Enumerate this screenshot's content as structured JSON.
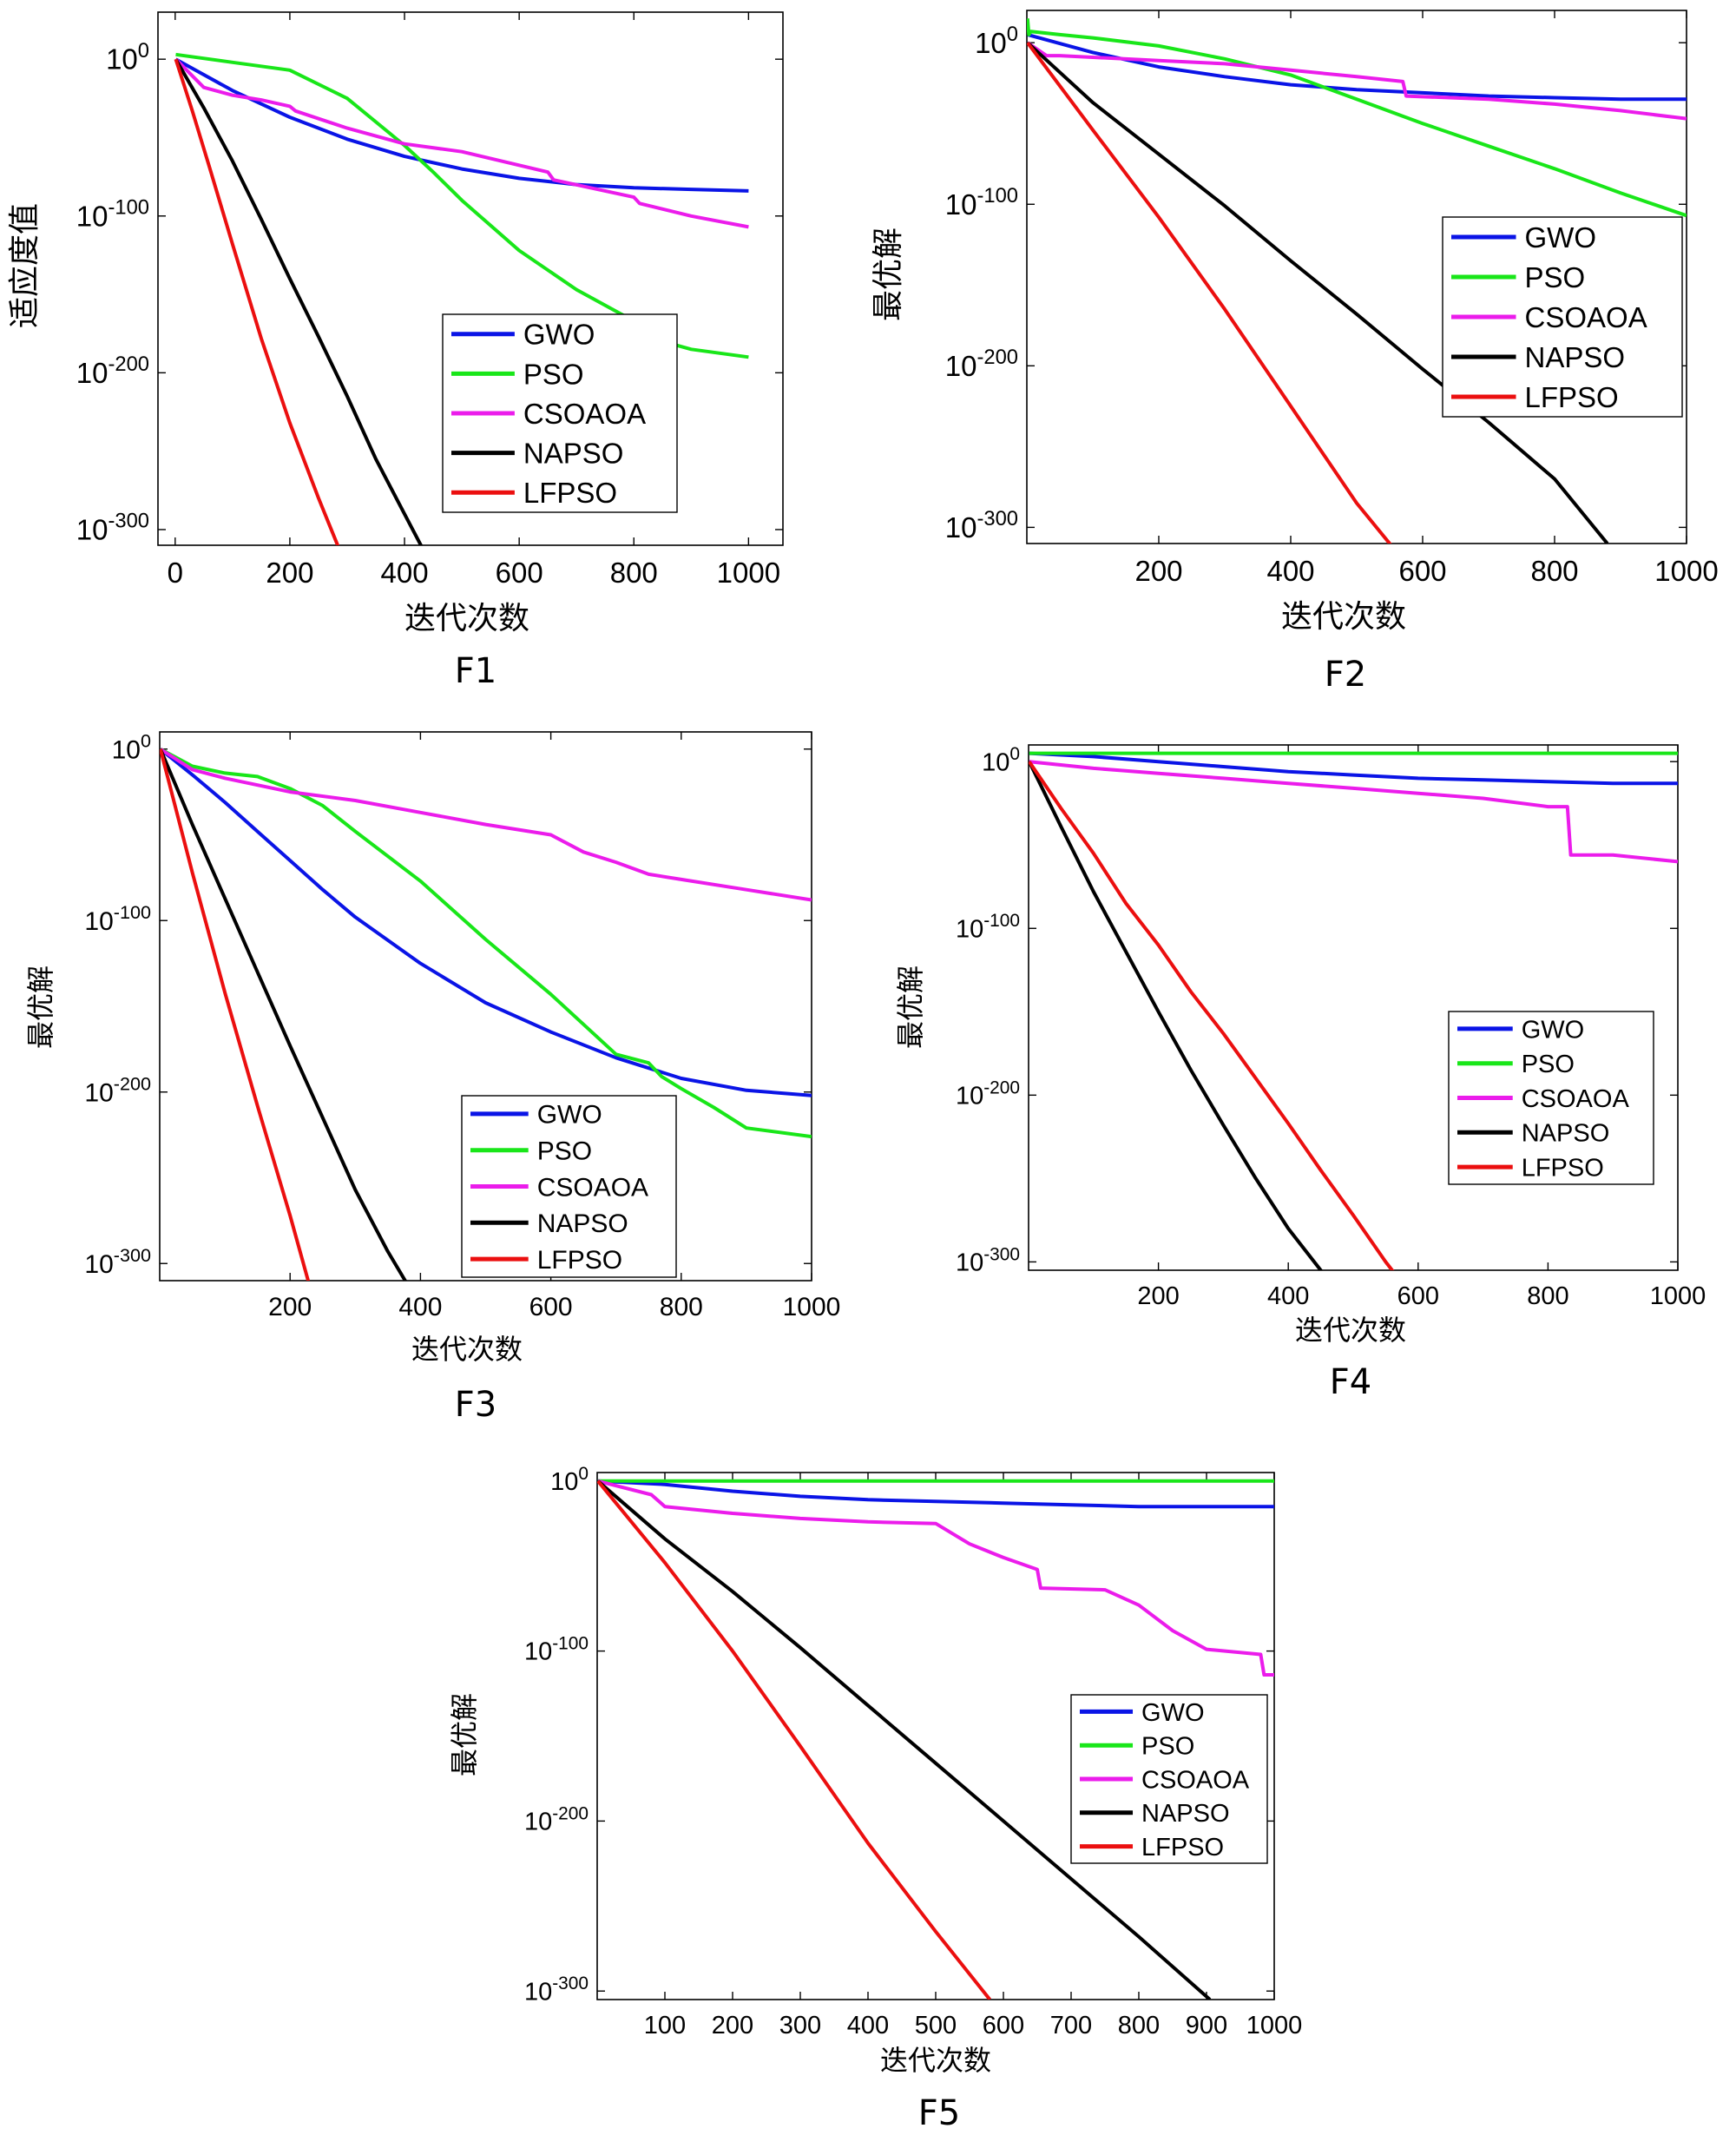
{
  "figure": {
    "series_colors": {
      "GWO": "#0a14e6",
      "PSO": "#19e619",
      "CSOAOA": "#eb1ceb",
      "NAPSO": "#000000",
      "LFPSO": "#eb0f0f"
    }
  },
  "chart_data": [
    {
      "id": "F1",
      "type": "line",
      "caption": "F1",
      "xlabel": "迭代次数",
      "ylabel": "适应度值",
      "yscale": "log10",
      "xlim": [
        -30,
        1060
      ],
      "ylim": [
        -310,
        30
      ],
      "xticks": [
        0,
        200,
        400,
        600,
        800,
        1000
      ],
      "yticks": [
        0,
        -100,
        -200,
        -300
      ],
      "ytick_labels": [
        "10^0",
        "10^-100",
        "10^-200",
        "10^-300"
      ],
      "legend_location": "lower-right",
      "series": [
        {
          "name": "GWO",
          "x": [
            1,
            100,
            200,
            300,
            400,
            500,
            600,
            700,
            800,
            900,
            1000
          ],
          "y": [
            0,
            -20,
            -37,
            -51,
            -62,
            -70,
            -76,
            -80,
            -82,
            -83,
            -84
          ]
        },
        {
          "name": "PSO",
          "x": [
            1,
            100,
            200,
            300,
            400,
            450,
            500,
            600,
            700,
            800,
            840,
            850,
            900,
            1000
          ],
          "y": [
            3,
            -2,
            -7,
            -25,
            -55,
            -72,
            -90,
            -122,
            -147,
            -167,
            -172,
            -180,
            -185,
            -190
          ]
        },
        {
          "name": "CSOAOA",
          "x": [
            1,
            50,
            100,
            150,
            200,
            210,
            300,
            400,
            500,
            650,
            660,
            800,
            810,
            900,
            1000
          ],
          "y": [
            0,
            -18,
            -23,
            -26,
            -30,
            -33,
            -44,
            -54,
            -59,
            -72,
            -77,
            -88,
            -92,
            -100,
            -107
          ]
        },
        {
          "name": "NAPSO",
          "x": [
            1,
            50,
            100,
            150,
            200,
            250,
            300,
            350,
            400,
            450
          ],
          "y": [
            0,
            -31,
            -65,
            -102,
            -140,
            -177,
            -215,
            -255,
            -290,
            -325
          ]
        },
        {
          "name": "LFPSO",
          "x": [
            1,
            30,
            60,
            100,
            150,
            200,
            250,
            300,
            315
          ],
          "y": [
            0,
            -33,
            -69,
            -118,
            -178,
            -232,
            -280,
            -325,
            -335
          ]
        }
      ]
    },
    {
      "id": "F2",
      "type": "line",
      "caption": "F2",
      "xlabel": "迭代次数",
      "ylabel": "最优解",
      "yscale": "log10",
      "xlim": [
        0,
        1000
      ],
      "ylim": [
        -310,
        20
      ],
      "xticks": [
        200,
        400,
        600,
        800,
        1000
      ],
      "yticks": [
        0,
        -100,
        -200,
        -300
      ],
      "ytick_labels": [
        "10^0",
        "10^-100",
        "10^-200",
        "10^-300"
      ],
      "legend_location": "right",
      "series": [
        {
          "name": "GWO",
          "x": [
            1,
            100,
            200,
            300,
            400,
            500,
            600,
            700,
            800,
            900,
            1000
          ],
          "y": [
            5,
            -6,
            -15,
            -21,
            -26,
            -29,
            -31,
            -33,
            -34,
            -35,
            -35
          ]
        },
        {
          "name": "PSO",
          "x": [
            1,
            3,
            6,
            50,
            100,
            200,
            300,
            400,
            500,
            600,
            700,
            800,
            900,
            1000
          ],
          "y": [
            15,
            5,
            7,
            5,
            3,
            -2,
            -10,
            -20,
            -35,
            -50,
            -64,
            -78,
            -93,
            -107
          ]
        },
        {
          "name": "CSOAOA",
          "x": [
            1,
            30,
            50,
            100,
            200,
            300,
            400,
            500,
            570,
            575,
            700,
            800,
            900,
            1000
          ],
          "y": [
            0,
            -8,
            -8,
            -9,
            -11,
            -13,
            -17,
            -21,
            -24,
            -33,
            -35,
            -38,
            -42,
            -47
          ]
        },
        {
          "name": "NAPSO",
          "x": [
            1,
            100,
            200,
            300,
            400,
            500,
            600,
            700,
            800,
            880
          ],
          "y": [
            0,
            -37,
            -69,
            -101,
            -135,
            -168,
            -202,
            -235,
            -270,
            -310
          ]
        },
        {
          "name": "LFPSO",
          "x": [
            1,
            100,
            200,
            300,
            400,
            500,
            560
          ],
          "y": [
            0,
            -54,
            -108,
            -165,
            -225,
            -285,
            -315
          ]
        }
      ]
    },
    {
      "id": "F3",
      "type": "line",
      "caption": "F3",
      "xlabel": "迭代次数",
      "ylabel": "最优解",
      "yscale": "log10",
      "xlim": [
        0,
        1000
      ],
      "ylim": [
        -310,
        10
      ],
      "xticks": [
        200,
        400,
        600,
        800,
        1000
      ],
      "yticks": [
        0,
        -100,
        -200,
        -300
      ],
      "ytick_labels": [
        "10^0",
        "10^-100",
        "10^-200",
        "10^-300"
      ],
      "legend_location": "lower-right",
      "series": [
        {
          "name": "GWO",
          "x": [
            1,
            50,
            100,
            150,
            200,
            250,
            300,
            400,
            500,
            600,
            700,
            800,
            900,
            1000
          ],
          "y": [
            0,
            -15,
            -31,
            -48,
            -65,
            -82,
            -98,
            -125,
            -148,
            -165,
            -180,
            -192,
            -199,
            -202
          ]
        },
        {
          "name": "PSO",
          "x": [
            1,
            50,
            100,
            150,
            200,
            250,
            300,
            400,
            500,
            600,
            700,
            750,
            770,
            800,
            850,
            900,
            1000
          ],
          "y": [
            0,
            -10,
            -14,
            -16,
            -23,
            -33,
            -48,
            -77,
            -111,
            -143,
            -178,
            -183,
            -191,
            -198,
            -209,
            -221,
            -226
          ]
        },
        {
          "name": "CSOAOA",
          "x": [
            1,
            50,
            100,
            200,
            300,
            400,
            500,
            600,
            650,
            700,
            750,
            800,
            900,
            1000
          ],
          "y": [
            0,
            -12,
            -17,
            -25,
            -30,
            -37,
            -44,
            -50,
            -60,
            -66,
            -73,
            -76,
            -82,
            -88
          ]
        },
        {
          "name": "NAPSO",
          "x": [
            1,
            50,
            100,
            150,
            200,
            250,
            300,
            350,
            400
          ],
          "y": [
            0,
            -44,
            -87,
            -130,
            -173,
            -215,
            -257,
            -293,
            -325
          ]
        },
        {
          "name": "LFPSO",
          "x": [
            1,
            50,
            100,
            150,
            200,
            235
          ],
          "y": [
            0,
            -72,
            -142,
            -208,
            -272,
            -320
          ]
        }
      ]
    },
    {
      "id": "F4",
      "type": "line",
      "caption": "F4",
      "xlabel": "迭代次数",
      "ylabel": "最优解",
      "yscale": "log10",
      "xlim": [
        0,
        1000
      ],
      "ylim": [
        -305,
        10
      ],
      "xticks": [
        200,
        400,
        600,
        800,
        1000
      ],
      "yticks": [
        0,
        -100,
        -200,
        -300
      ],
      "ytick_labels": [
        "10^0",
        "10^-100",
        "10^-200",
        "10^-300"
      ],
      "legend_location": "lower-right",
      "series": [
        {
          "name": "GWO",
          "x": [
            1,
            100,
            200,
            300,
            400,
            500,
            600,
            700,
            800,
            900,
            1000
          ],
          "y": [
            5,
            3,
            0,
            -3,
            -6,
            -8,
            -10,
            -11,
            -12,
            -13,
            -13
          ]
        },
        {
          "name": "PSO",
          "x": [
            1,
            1000
          ],
          "y": [
            5,
            5
          ]
        },
        {
          "name": "CSOAOA",
          "x": [
            1,
            100,
            200,
            300,
            400,
            500,
            600,
            700,
            800,
            830,
            835,
            900,
            1000
          ],
          "y": [
            0,
            -4,
            -7,
            -10,
            -13,
            -16,
            -19,
            -22,
            -27,
            -27,
            -56,
            -56,
            -60
          ]
        },
        {
          "name": "NAPSO",
          "x": [
            1,
            50,
            100,
            150,
            200,
            250,
            300,
            350,
            400,
            450,
            475
          ],
          "y": [
            0,
            -39,
            -78,
            -114,
            -150,
            -185,
            -218,
            -250,
            -280,
            -305,
            -320
          ]
        },
        {
          "name": "LFPSO",
          "x": [
            1,
            50,
            100,
            150,
            200,
            250,
            300,
            350,
            400,
            450,
            500,
            550,
            590
          ],
          "y": [
            0,
            -28,
            -55,
            -85,
            -110,
            -138,
            -163,
            -190,
            -217,
            -245,
            -272,
            -300,
            -320
          ]
        }
      ]
    },
    {
      "id": "F5",
      "type": "line",
      "caption": "F5",
      "xlabel": "迭代次数",
      "ylabel": "最优解",
      "yscale": "log10",
      "xlim": [
        0,
        1000
      ],
      "ylim": [
        -305,
        5
      ],
      "xticks": [
        100,
        200,
        300,
        400,
        500,
        600,
        700,
        800,
        900,
        1000
      ],
      "yticks": [
        0,
        -100,
        -200,
        -300
      ],
      "ytick_labels": [
        "10^0",
        "10^-100",
        "10^-200",
        "10^-300"
      ],
      "legend_location": "lower-right",
      "series": [
        {
          "name": "GWO",
          "x": [
            1,
            100,
            200,
            300,
            400,
            500,
            600,
            700,
            800,
            900,
            1000
          ],
          "y": [
            0,
            -2,
            -6,
            -9,
            -11,
            -12,
            -13,
            -14,
            -15,
            -15,
            -15
          ]
        },
        {
          "name": "PSO",
          "x": [
            1,
            1000
          ],
          "y": [
            0,
            0
          ]
        },
        {
          "name": "CSOAOA",
          "x": [
            1,
            80,
            100,
            200,
            300,
            400,
            500,
            550,
            600,
            650,
            655,
            750,
            800,
            850,
            900,
            980,
            985,
            1000
          ],
          "y": [
            0,
            -8,
            -15,
            -19,
            -22,
            -24,
            -25,
            -37,
            -45,
            -52,
            -63,
            -64,
            -73,
            -88,
            -99,
            -102,
            -114,
            -114
          ]
        },
        {
          "name": "NAPSO",
          "x": [
            1,
            100,
            200,
            300,
            400,
            500,
            600,
            700,
            800,
            905
          ],
          "y": [
            0,
            -34,
            -65,
            -98,
            -132,
            -166,
            -200,
            -234,
            -268,
            -305
          ]
        },
        {
          "name": "LFPSO",
          "x": [
            1,
            100,
            200,
            300,
            400,
            500,
            580
          ],
          "y": [
            0,
            -48,
            -100,
            -156,
            -213,
            -265,
            -305
          ]
        }
      ]
    }
  ]
}
